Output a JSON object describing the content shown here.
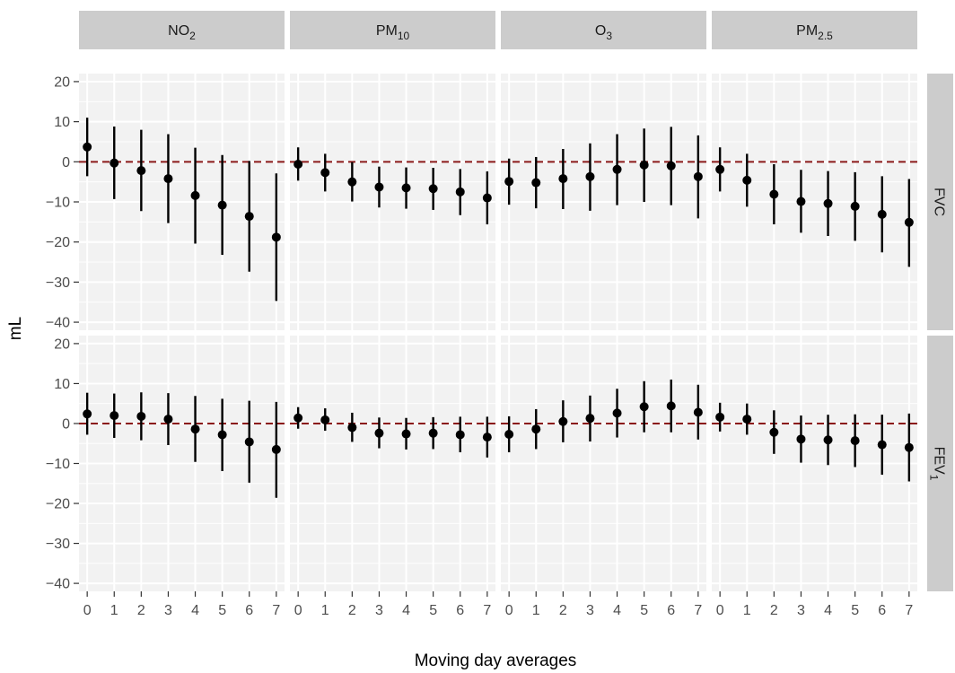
{
  "chart_data": {
    "type": "faceted_pointrange",
    "xlabel": "Moving day averages",
    "ylabel": "mL",
    "x": [
      "0",
      "1",
      "2",
      "3",
      "4",
      "5",
      "6",
      "7"
    ],
    "ylim": [
      -42,
      22
    ],
    "yticks": [
      "20",
      "10",
      "0",
      "−10",
      "−20",
      "−30",
      "−40"
    ],
    "ytick_values": [
      20,
      10,
      0,
      -10,
      -20,
      -30,
      -40
    ],
    "reference_line": 0,
    "reference_color": "#8b1a1a",
    "panel_background": "#f2f2f2",
    "strip_background": "#cccccc",
    "columns": [
      {
        "id": "no2",
        "base": "NO",
        "sub": "2"
      },
      {
        "id": "pm10",
        "base": "PM",
        "sub": "10"
      },
      {
        "id": "o3",
        "base": "O",
        "sub": "3"
      },
      {
        "id": "pm25",
        "base": "PM",
        "sub": "2.5"
      }
    ],
    "rows": [
      {
        "id": "fvc",
        "base": "FVC",
        "sub": ""
      },
      {
        "id": "fev1",
        "base": "FEV",
        "sub": "1"
      }
    ],
    "panels": {
      "fvc": {
        "no2": {
          "est": [
            3.7,
            -0.3,
            -2.2,
            -4.2,
            -8.4,
            -10.8,
            -13.6,
            -18.8
          ],
          "lo": [
            -3.6,
            -9.3,
            -12.3,
            -15.3,
            -20.4,
            -23.2,
            -27.4,
            -34.7
          ],
          "hi": [
            11.0,
            8.8,
            8.0,
            6.9,
            3.5,
            1.7,
            0.2,
            -2.9
          ]
        },
        "pm10": {
          "est": [
            -0.6,
            -2.7,
            -5.0,
            -6.3,
            -6.5,
            -6.7,
            -7.5,
            -9.0
          ],
          "lo": [
            -4.7,
            -7.4,
            -9.9,
            -11.4,
            -11.7,
            -12.0,
            -13.3,
            -15.6
          ],
          "hi": [
            3.6,
            2.0,
            -0.1,
            -1.2,
            -1.4,
            -1.5,
            -1.8,
            -2.4
          ]
        },
        "o3": {
          "est": [
            -4.9,
            -5.2,
            -4.2,
            -3.7,
            -1.9,
            -0.8,
            -1.0,
            -3.7
          ],
          "lo": [
            -10.7,
            -11.6,
            -11.8,
            -12.2,
            -10.8,
            -10.0,
            -10.8,
            -14.1
          ],
          "hi": [
            0.8,
            1.2,
            3.2,
            4.6,
            6.9,
            8.3,
            8.7,
            6.6
          ]
        },
        "pm25": {
          "est": [
            -1.9,
            -4.6,
            -8.1,
            -9.9,
            -10.4,
            -11.1,
            -13.1,
            -15.1
          ],
          "lo": [
            -7.4,
            -11.2,
            -15.6,
            -17.7,
            -18.5,
            -19.7,
            -22.6,
            -26.2
          ],
          "hi": [
            3.6,
            2.0,
            -0.6,
            -2.0,
            -2.3,
            -2.6,
            -3.6,
            -4.3
          ]
        }
      },
      "fev1": {
        "no2": {
          "est": [
            2.4,
            2.0,
            1.8,
            1.1,
            -1.4,
            -2.8,
            -4.6,
            -6.5
          ],
          "lo": [
            -2.8,
            -3.6,
            -4.2,
            -5.4,
            -9.6,
            -11.9,
            -14.8,
            -18.6
          ],
          "hi": [
            7.7,
            7.5,
            7.8,
            7.6,
            6.9,
            6.2,
            5.7,
            5.4
          ]
        },
        "pm10": {
          "est": [
            1.4,
            0.9,
            -1.0,
            -2.4,
            -2.6,
            -2.4,
            -2.8,
            -3.4
          ],
          "lo": [
            -1.3,
            -1.8,
            -4.6,
            -6.2,
            -6.5,
            -6.4,
            -7.2,
            -8.5
          ],
          "hi": [
            4.1,
            3.8,
            2.7,
            1.5,
            1.4,
            1.6,
            1.7,
            1.7
          ]
        },
        "o3": {
          "est": [
            -2.7,
            -1.4,
            0.5,
            1.3,
            2.6,
            4.2,
            4.4,
            2.8
          ],
          "lo": [
            -7.2,
            -6.4,
            -4.7,
            -4.5,
            -3.5,
            -2.2,
            -2.2,
            -4.0
          ],
          "hi": [
            1.8,
            3.6,
            5.8,
            7.0,
            8.7,
            10.6,
            11.0,
            9.7
          ]
        },
        "pm25": {
          "est": [
            1.6,
            1.1,
            -2.2,
            -3.9,
            -4.1,
            -4.3,
            -5.3,
            -6.0
          ],
          "lo": [
            -2.0,
            -2.8,
            -7.6,
            -9.8,
            -10.4,
            -10.9,
            -12.8,
            -14.5
          ],
          "hi": [
            5.2,
            5.0,
            3.3,
            2.0,
            2.2,
            2.3,
            2.2,
            2.5
          ]
        }
      }
    }
  }
}
